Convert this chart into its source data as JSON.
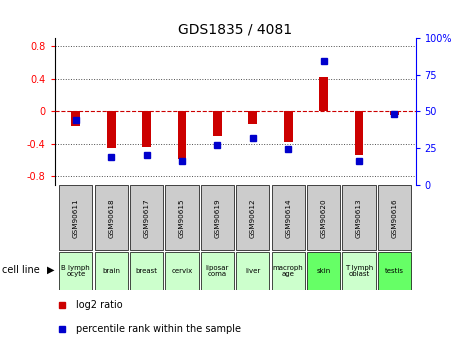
{
  "title": "GDS1835 / 4081",
  "samples": [
    "GSM90611",
    "GSM90618",
    "GSM90617",
    "GSM90615",
    "GSM90619",
    "GSM90612",
    "GSM90614",
    "GSM90620",
    "GSM90613",
    "GSM90616"
  ],
  "cell_lines": [
    "B lymph\nocyte",
    "brain",
    "breast",
    "cervix",
    "liposar\ncoma",
    "liver",
    "macroph\nage",
    "skin",
    "T lymph\noblast",
    "testis"
  ],
  "cell_line_colors": [
    "#ccffcc",
    "#ccffcc",
    "#ccffcc",
    "#ccffcc",
    "#ccffcc",
    "#ccffcc",
    "#ccffcc",
    "#66ff66",
    "#ccffcc",
    "#66ff66"
  ],
  "log2_ratio": [
    -0.18,
    -0.45,
    -0.44,
    -0.58,
    -0.3,
    -0.16,
    -0.38,
    0.42,
    -0.54,
    -0.05
  ],
  "percentile_rank": [
    44,
    19,
    20,
    16,
    27,
    32,
    24,
    84,
    16,
    48
  ],
  "ylim_left": [
    -0.9,
    0.9
  ],
  "yticks_left": [
    -0.8,
    -0.4,
    0.0,
    0.4,
    0.8
  ],
  "ylim_right": [
    0,
    100
  ],
  "yticks_right": [
    0,
    25,
    50,
    75,
    100
  ],
  "bar_color_red": "#cc0000",
  "bar_color_blue": "#0000cc",
  "bg_color": "#ffffff",
  "grid_color": "#000000",
  "zero_line_color": "#cc0000",
  "sample_box_color": "#cccccc"
}
